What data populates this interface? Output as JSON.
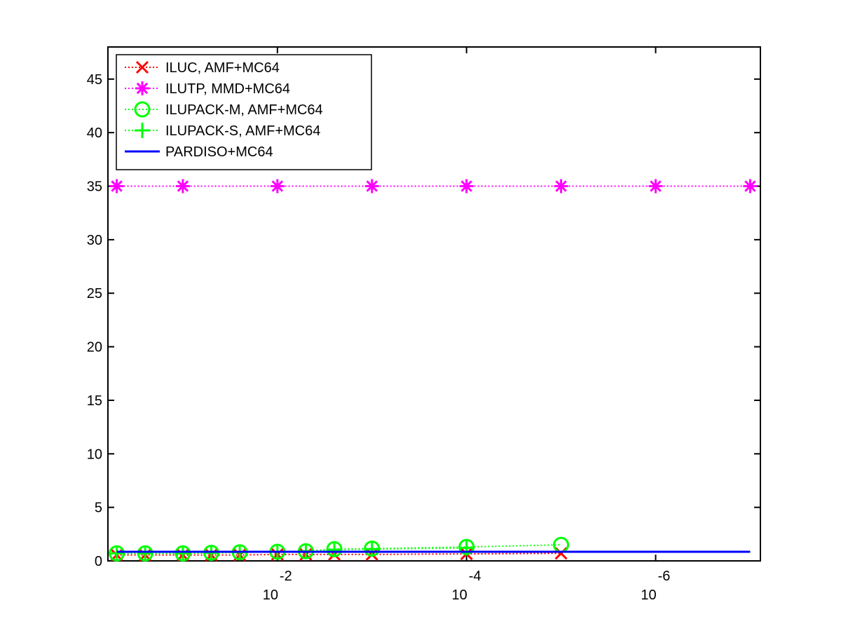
{
  "chart_data": {
    "type": "line",
    "xscale": "log",
    "xlim": [
      0.62,
      7.8e-08
    ],
    "xticks": [
      {
        "value": 0.01,
        "label": "10",
        "exponent": "-2"
      },
      {
        "value": 0.0001,
        "label": "10",
        "exponent": "-4"
      },
      {
        "value": 1e-06,
        "label": "10",
        "exponent": "-6"
      }
    ],
    "ylim": [
      0,
      48
    ],
    "yticks": [
      0,
      5,
      10,
      15,
      20,
      25,
      30,
      35,
      40,
      45
    ],
    "legend": "upper left",
    "series": [
      {
        "name": "ILUC, AMF+MC64",
        "color": "#ff0000",
        "marker": "x",
        "linestyle": "dotted",
        "x": [
          0.5,
          0.25,
          0.1,
          0.05,
          0.025,
          0.01,
          0.005,
          0.0025,
          0.001,
          0.0001,
          1e-05
        ],
        "values": [
          0.55,
          0.55,
          0.55,
          0.55,
          0.55,
          0.6,
          0.6,
          0.6,
          0.6,
          0.65,
          0.7
        ]
      },
      {
        "name": "ILUTP, MMD+MC64",
        "color": "#ff00ff",
        "marker": "star",
        "linestyle": "dotted",
        "x": [
          0.5,
          0.1,
          0.01,
          0.001,
          0.0001,
          1e-05,
          1e-06,
          1e-07
        ],
        "values": [
          35,
          35,
          35,
          35,
          35,
          35,
          35,
          35
        ]
      },
      {
        "name": "ILUPACK-M, AMF+MC64",
        "color": "#00ff00",
        "marker": "circle",
        "linestyle": "dotted",
        "x": [
          0.5,
          0.25,
          0.1,
          0.05,
          0.025,
          0.01,
          0.005,
          0.0025,
          0.001,
          0.0001,
          1e-05
        ],
        "values": [
          0.7,
          0.7,
          0.7,
          0.75,
          0.8,
          0.85,
          0.9,
          1.1,
          1.15,
          1.3,
          1.5
        ]
      },
      {
        "name": "ILUPACK-S, AMF+MC64",
        "color": "#00ff00",
        "marker": "plus",
        "linestyle": "dotted",
        "x": [
          0.5,
          0.25,
          0.1,
          0.05,
          0.025,
          0.01,
          0.005,
          0.0025,
          0.001,
          0.0001
        ],
        "values": [
          0.7,
          0.7,
          0.7,
          0.75,
          0.8,
          0.85,
          0.9,
          1.05,
          1.1,
          1.2
        ]
      },
      {
        "name": "PARDISO+MC64",
        "color": "#0000ff",
        "marker": "none",
        "linestyle": "solid",
        "x": [
          0.5,
          1e-07
        ],
        "values": [
          0.85,
          0.85
        ]
      }
    ]
  }
}
